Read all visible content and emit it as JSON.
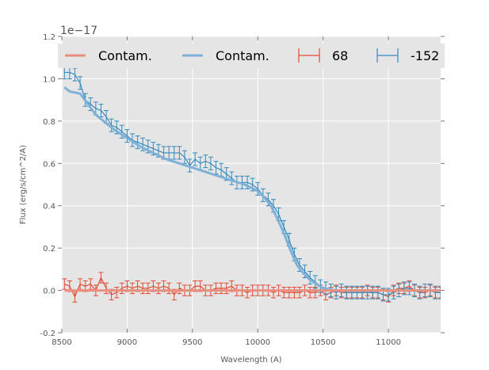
{
  "chart_data": {
    "type": "line",
    "title": "",
    "xlabel": "Wavelength (A)",
    "ylabel": "Flux (erg/s/cm^2/A)",
    "offset_label": "1e−17",
    "xlim": [
      8500,
      11400
    ],
    "ylim": [
      -0.2,
      1.2
    ],
    "xticks": [
      8500,
      9000,
      9500,
      10000,
      10500,
      11000
    ],
    "yticks": [
      -0.2,
      0.0,
      0.2,
      0.4,
      0.6,
      0.8,
      1.0,
      1.2
    ],
    "grid": true,
    "legend_placement": "top",
    "colors": {
      "red": "#E24A33",
      "blue": "#348ABD",
      "bg": "#E5E5E5"
    },
    "series": [
      {
        "name": "Contam.",
        "kind": "line",
        "color": "#E8907F",
        "x": [
          8520,
          8700,
          9000,
          9500,
          10000,
          10500,
          11000,
          11400
        ],
        "y": [
          0.0,
          0.0,
          0.0,
          0.0,
          0.0,
          0.0,
          0.0,
          0.0
        ]
      },
      {
        "name": "Contam.",
        "kind": "line",
        "color": "#7FB1D6",
        "x": [
          8520,
          8560,
          8640,
          8700,
          8760,
          8840,
          8900,
          9000,
          9100,
          9200,
          9300,
          9400,
          9500,
          9600,
          9700,
          9800,
          9900,
          10000,
          10050,
          10100,
          10150,
          10200,
          10250,
          10300,
          10350,
          10400,
          10450,
          10500,
          10600,
          11400
        ],
        "y": [
          0.96,
          0.94,
          0.93,
          0.88,
          0.83,
          0.79,
          0.76,
          0.72,
          0.68,
          0.65,
          0.62,
          0.6,
          0.58,
          0.56,
          0.54,
          0.52,
          0.5,
          0.47,
          0.44,
          0.4,
          0.34,
          0.27,
          0.19,
          0.12,
          0.08,
          0.05,
          0.03,
          0.01,
          0.0,
          0.0
        ]
      },
      {
        "name": "68",
        "kind": "errorbar",
        "color": "#E24A33",
        "err": 0.025,
        "x": [
          8520,
          8560,
          8600,
          8640,
          8680,
          8720,
          8760,
          8800,
          8840,
          8880,
          8920,
          8960,
          9000,
          9040,
          9080,
          9120,
          9160,
          9200,
          9240,
          9280,
          9320,
          9360,
          9400,
          9440,
          9480,
          9520,
          9560,
          9600,
          9640,
          9680,
          9720,
          9760,
          9800,
          9840,
          9880,
          9920,
          9960,
          10000,
          10040,
          10080,
          10120,
          10160,
          10200,
          10240,
          10280,
          10320,
          10360,
          10400,
          10440,
          10480,
          10520,
          10560,
          10600,
          10640,
          10680,
          10720,
          10760,
          10800,
          10840,
          10880,
          10920,
          10960,
          11000,
          11040,
          11080,
          11120,
          11160,
          11200,
          11240,
          11280,
          11320,
          11360,
          11400
        ],
        "y": [
          0.03,
          0.02,
          -0.03,
          0.03,
          0.02,
          0.03,
          0.0,
          0.06,
          0.01,
          -0.02,
          -0.01,
          0.01,
          0.02,
          0.01,
          0.02,
          0.01,
          0.01,
          0.02,
          0.01,
          0.02,
          0.01,
          -0.02,
          0.01,
          0.0,
          0.0,
          0.02,
          0.02,
          0.0,
          0.0,
          0.01,
          0.01,
          0.01,
          0.02,
          0.0,
          0.0,
          -0.01,
          0.0,
          0.0,
          0.0,
          0.0,
          -0.01,
          0.0,
          -0.01,
          -0.01,
          -0.01,
          -0.01,
          0.0,
          -0.01,
          -0.01,
          0.0,
          -0.02,
          -0.01,
          0.0,
          -0.01,
          -0.01,
          -0.01,
          -0.01,
          -0.01,
          0.0,
          -0.01,
          -0.01,
          -0.02,
          -0.03,
          0.0,
          0.01,
          0.01,
          0.02,
          0.0,
          -0.01,
          -0.01,
          0.0,
          -0.01,
          -0.01
        ]
      },
      {
        "name": "-152",
        "kind": "errorbar",
        "color": "#348ABD",
        "err": 0.03,
        "x": [
          8520,
          8560,
          8600,
          8640,
          8680,
          8720,
          8760,
          8800,
          8840,
          8880,
          8920,
          8960,
          9000,
          9040,
          9080,
          9120,
          9160,
          9200,
          9240,
          9280,
          9320,
          9360,
          9400,
          9440,
          9480,
          9520,
          9560,
          9600,
          9640,
          9680,
          9720,
          9760,
          9800,
          9840,
          9880,
          9920,
          9960,
          10000,
          10040,
          10080,
          10120,
          10160,
          10200,
          10240,
          10280,
          10320,
          10360,
          10400,
          10440,
          10480,
          10520,
          10560,
          10600,
          10640,
          10680,
          10720,
          10760,
          10800,
          10840,
          10880,
          10920,
          10960,
          11000,
          11040,
          11080,
          11120,
          11160,
          11200,
          11240,
          11280,
          11320,
          11360,
          11400
        ],
        "y": [
          1.03,
          1.03,
          1.02,
          0.98,
          0.9,
          0.88,
          0.86,
          0.85,
          0.82,
          0.78,
          0.77,
          0.75,
          0.73,
          0.71,
          0.7,
          0.69,
          0.68,
          0.67,
          0.66,
          0.65,
          0.65,
          0.65,
          0.65,
          0.63,
          0.59,
          0.62,
          0.6,
          0.61,
          0.6,
          0.58,
          0.57,
          0.55,
          0.53,
          0.51,
          0.51,
          0.51,
          0.5,
          0.48,
          0.45,
          0.43,
          0.4,
          0.36,
          0.3,
          0.24,
          0.17,
          0.12,
          0.09,
          0.06,
          0.04,
          0.02,
          0.01,
          0.0,
          -0.01,
          0.0,
          -0.01,
          -0.01,
          -0.01,
          -0.01,
          -0.01,
          -0.01,
          -0.01,
          -0.02,
          -0.02,
          -0.01,
          0.0,
          0.01,
          0.01,
          0.0,
          -0.01,
          0.0,
          0.0,
          -0.01,
          -0.01
        ]
      }
    ]
  }
}
